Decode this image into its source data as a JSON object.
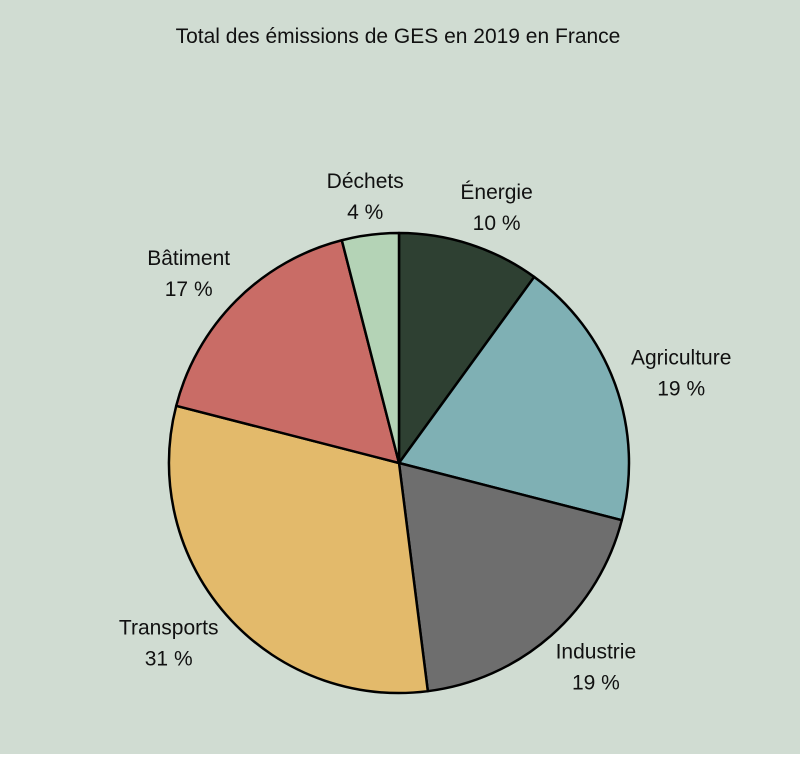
{
  "chart_data": {
    "type": "pie",
    "title": "Total des émissions de GES en 2019 en France",
    "unit": "%",
    "start_angle_deg": 0,
    "direction": "clockwise",
    "slices": [
      {
        "label": "Énergie",
        "value": 10,
        "value_label": "10 %",
        "color": "#2e4032"
      },
      {
        "label": "Agriculture",
        "value": 19,
        "value_label": "19 %",
        "color": "#7fb0b4"
      },
      {
        "label": "Industrie",
        "value": 19,
        "value_label": "19 %",
        "color": "#6e6e6e"
      },
      {
        "label": "Transports",
        "value": 31,
        "value_label": "31 %",
        "color": "#e3ba6b"
      },
      {
        "label": "Bâtiment",
        "value": 17,
        "value_label": "17 %",
        "color": "#c96c66"
      },
      {
        "label": "Déchets",
        "value": 4,
        "value_label": "4 %",
        "color": "#b4d3b6"
      }
    ],
    "legend": "none",
    "labels_outside": true
  }
}
